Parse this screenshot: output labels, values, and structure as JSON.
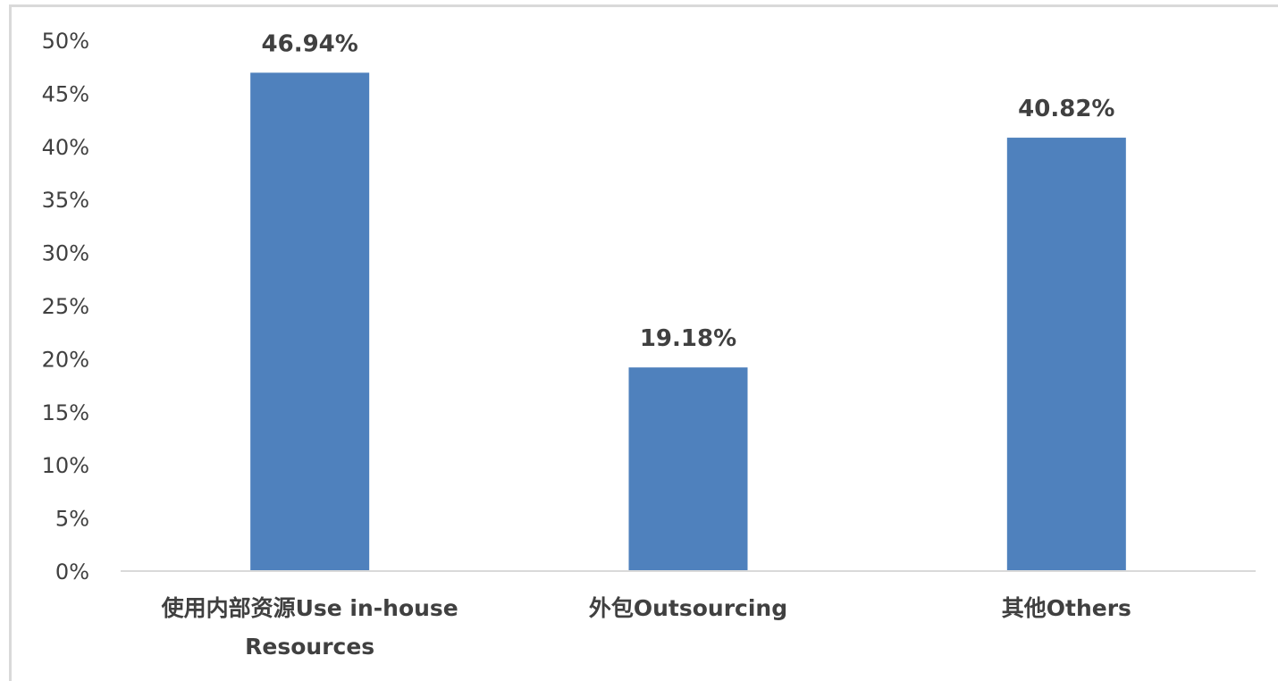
{
  "chart_data": {
    "type": "bar",
    "categories": [
      [
        "使用内部资源Use in-house",
        "Resources"
      ],
      [
        "外包Outsourcing"
      ],
      [
        "其他Others"
      ]
    ],
    "values": [
      46.94,
      19.18,
      40.82
    ],
    "data_labels": [
      "46.94%",
      "19.18%",
      "40.82%"
    ],
    "yticks": [
      "0%",
      "5%",
      "10%",
      "15%",
      "20%",
      "25%",
      "30%",
      "35%",
      "40%",
      "45%",
      "50%"
    ],
    "ylim": [
      0,
      50
    ],
    "grid": false,
    "legend": "none",
    "colors": {
      "bar": "#4f81bd",
      "axis": "#d9d9d9",
      "text": "#404040"
    }
  }
}
